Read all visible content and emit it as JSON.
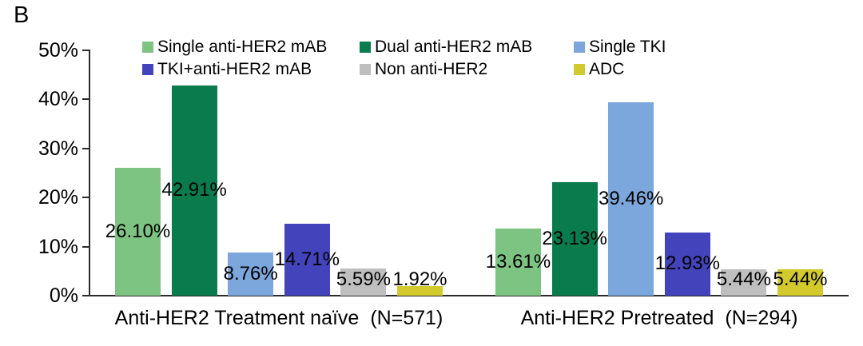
{
  "panel_label": "B",
  "chart_data": {
    "type": "bar",
    "title": "",
    "xlabel": "",
    "ylabel": "",
    "ylim": [
      0,
      50
    ],
    "grid": false,
    "legend_position": "top",
    "yticks": [
      {
        "label": "0%",
        "value": 0
      },
      {
        "label": "10%",
        "value": 10
      },
      {
        "label": "20%",
        "value": 20
      },
      {
        "label": "30%",
        "value": 30
      },
      {
        "label": "40%",
        "value": 40
      },
      {
        "label": "50%",
        "value": 50
      }
    ],
    "categories": [
      {
        "label": "Anti-HER2 Treatment naïve",
        "n": "(N=571)"
      },
      {
        "label": "Anti-HER2 Pretreated",
        "n": "(N=294)"
      }
    ],
    "series": [
      {
        "name": "Single anti-HER2 mAB",
        "color": "#7dc482",
        "values": [
          26.1,
          13.61
        ],
        "labels": [
          "26.10%",
          "13.61%"
        ]
      },
      {
        "name": "Dual anti-HER2 mAB",
        "color": "#0a7b4d",
        "values": [
          42.91,
          23.13
        ],
        "labels": [
          "42.91%",
          "23.13%"
        ]
      },
      {
        "name": "Single TKI",
        "color": "#7ca7dc",
        "values": [
          8.76,
          39.46
        ],
        "labels": [
          "8.76%",
          "39.46%"
        ]
      },
      {
        "name": "TKI+anti-HER2 mAB",
        "color": "#4344bb",
        "values": [
          14.71,
          12.93
        ],
        "labels": [
          "14.71%",
          "12.93%"
        ]
      },
      {
        "name": "Non anti-HER2",
        "color": "#bfbfbf",
        "values": [
          5.59,
          5.44
        ],
        "labels": [
          "5.59%",
          "5.44%"
        ]
      },
      {
        "name": "ADC",
        "color": "#d2ca2d",
        "values": [
          1.92,
          5.44
        ],
        "labels": [
          "1.92%",
          "5.44%"
        ]
      }
    ]
  }
}
